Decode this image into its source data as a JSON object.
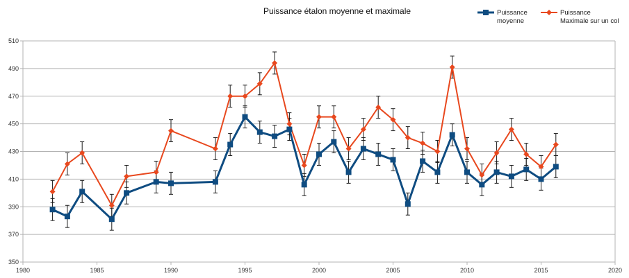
{
  "chart_data": {
    "type": "line",
    "title": "Puissance étalon moyenne et maximale",
    "xlabel": "",
    "ylabel": "",
    "xlim": [
      1980,
      2020
    ],
    "ylim": [
      350,
      510
    ],
    "x_ticks": [
      1980,
      1985,
      1990,
      1995,
      2000,
      2005,
      2010,
      2015,
      2020
    ],
    "y_ticks": [
      350,
      370,
      390,
      410,
      430,
      450,
      470,
      490,
      510
    ],
    "grid": "horizontal",
    "legend_position": "top-right",
    "error_bar": 8,
    "series": [
      {
        "name": "Puissance moyenne",
        "legend_lines": [
          "Puissance",
          "moyenne"
        ],
        "color": "#0f4c81",
        "marker": "square",
        "points": [
          {
            "x": 1982,
            "y": 388
          },
          {
            "x": 1983,
            "y": 383
          },
          {
            "x": 1984,
            "y": 401
          },
          {
            "x": 1986,
            "y": 381
          },
          {
            "x": 1987,
            "y": 400
          },
          {
            "x": 1989,
            "y": 408
          },
          {
            "x": 1990,
            "y": 407
          },
          {
            "x": 1993,
            "y": 408
          },
          {
            "x": 1994,
            "y": 435
          },
          {
            "x": 1995,
            "y": 455
          },
          {
            "x": 1996,
            "y": 444
          },
          {
            "x": 1997,
            "y": 441
          },
          {
            "x": 1998,
            "y": 446
          },
          {
            "x": 1999,
            "y": 406
          },
          {
            "x": 2000,
            "y": 428
          },
          {
            "x": 2001,
            "y": 437
          },
          {
            "x": 2002,
            "y": 415
          },
          {
            "x": 2003,
            "y": 432
          },
          {
            "x": 2004,
            "y": 428
          },
          {
            "x": 2005,
            "y": 424
          },
          {
            "x": 2006,
            "y": 392
          },
          {
            "x": 2007,
            "y": 423
          },
          {
            "x": 2008,
            "y": 415
          },
          {
            "x": 2009,
            "y": 442
          },
          {
            "x": 2010,
            "y": 415
          },
          {
            "x": 2011,
            "y": 406
          },
          {
            "x": 2012,
            "y": 415
          },
          {
            "x": 2013,
            "y": 412
          },
          {
            "x": 2014,
            "y": 417
          },
          {
            "x": 2015,
            "y": 410
          },
          {
            "x": 2016,
            "y": 419
          }
        ]
      },
      {
        "name": "Puissance Maximale sur un col",
        "legend_lines": [
          "Puissance",
          "Maximale sur un col"
        ],
        "color": "#e8481e",
        "marker": "diamond",
        "points": [
          {
            "x": 1982,
            "y": 401
          },
          {
            "x": 1983,
            "y": 421
          },
          {
            "x": 1984,
            "y": 429
          },
          {
            "x": 1986,
            "y": 391
          },
          {
            "x": 1987,
            "y": 412
          },
          {
            "x": 1989,
            "y": 415
          },
          {
            "x": 1990,
            "y": 445
          },
          {
            "x": 1993,
            "y": 432
          },
          {
            "x": 1994,
            "y": 470
          },
          {
            "x": 1995,
            "y": 470
          },
          {
            "x": 1996,
            "y": 479
          },
          {
            "x": 1997,
            "y": 494
          },
          {
            "x": 1998,
            "y": 450
          },
          {
            "x": 1999,
            "y": 420
          },
          {
            "x": 2000,
            "y": 455
          },
          {
            "x": 2001,
            "y": 455
          },
          {
            "x": 2002,
            "y": 432
          },
          {
            "x": 2003,
            "y": 446
          },
          {
            "x": 2004,
            "y": 462
          },
          {
            "x": 2005,
            "y": 453
          },
          {
            "x": 2006,
            "y": 440
          },
          {
            "x": 2007,
            "y": 436
          },
          {
            "x": 2008,
            "y": 430
          },
          {
            "x": 2009,
            "y": 491
          },
          {
            "x": 2010,
            "y": 432
          },
          {
            "x": 2011,
            "y": 413
          },
          {
            "x": 2012,
            "y": 429
          },
          {
            "x": 2013,
            "y": 446
          },
          {
            "x": 2014,
            "y": 428
          },
          {
            "x": 2015,
            "y": 419
          },
          {
            "x": 2016,
            "y": 435
          }
        ]
      }
    ]
  }
}
